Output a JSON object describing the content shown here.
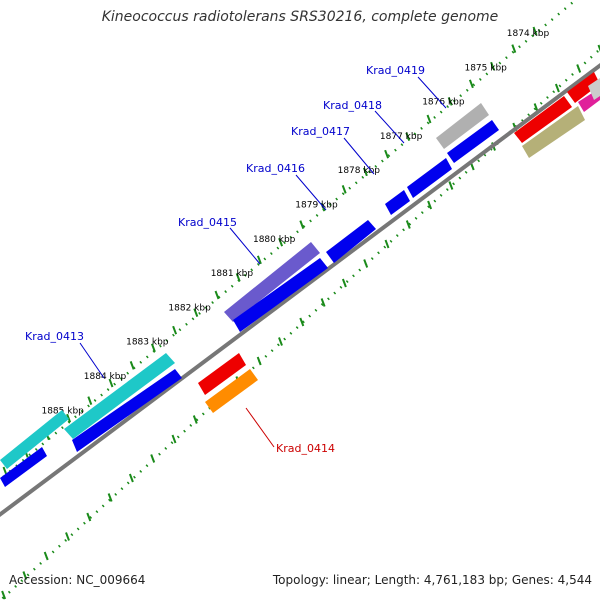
{
  "title": "Kineococcus radiotolerans SRS30216, complete genome",
  "footer": {
    "accession": "Accession: NC_009664",
    "summary": "Topology: linear; Length: 4,761,183 bp; Genes: 4,544"
  },
  "ruler_ticks": [
    "1874 kbp",
    "1875 kbp",
    "1876 kbp",
    "1877 kbp",
    "1878 kbp",
    "1879 kbp",
    "1880 kbp",
    "1881 kbp",
    "1882 kbp",
    "1883 kbp",
    "1884 kbp",
    "1885 kbp"
  ],
  "gene_labels": [
    "Krad_0413",
    "Krad_0414",
    "Krad_0415",
    "Krad_0416",
    "Krad_0417",
    "Krad_0418",
    "Krad_0419"
  ],
  "colors": {
    "forward_gene": "#0000ee",
    "label_blue": "#0000cc",
    "label_red": "#cc0000",
    "cyan_feature": "#1ec8c8",
    "purple_feature": "#6a5acd",
    "grey_feature": "#b0b0b0",
    "red_gene": "#ee0000",
    "orange_gene": "#ff8c00",
    "olive_feature": "#b5b078",
    "magenta_feature": "#e0209a",
    "tick_green": "#1a8a1a",
    "backbone": "#777777"
  }
}
